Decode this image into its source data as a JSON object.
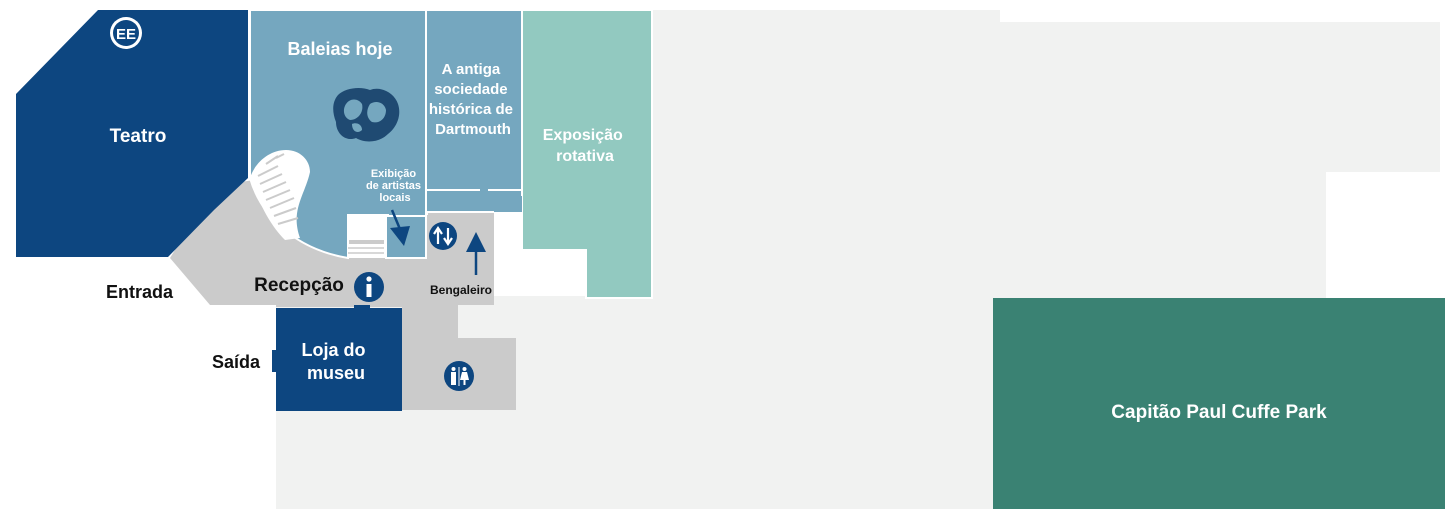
{
  "rooms": {
    "teatro": "Teatro",
    "ee_badge": "EE",
    "baleias": "Baleias hoje",
    "sociedade": [
      "A antiga",
      "sociedade",
      "histórica de",
      "Dartmouth"
    ],
    "exposicao": [
      "Exposição",
      "rotativa"
    ],
    "exibicao": [
      "Exibição",
      "de artistas",
      "locais"
    ],
    "recepcao": "Recepção",
    "bengaleiro": "Bengaleiro",
    "loja": [
      "Loja do",
      "museu"
    ],
    "park": "Capitão Paul Cuffe Park"
  },
  "outside": {
    "entrada": "Entrada",
    "saida": "Saída"
  },
  "icons": [
    "ee-icon",
    "whale-skeleton-icon",
    "info-icon",
    "elevator-icon",
    "restroom-icon",
    "arrow-down-icon",
    "arrow-up-icon"
  ],
  "colors": {
    "dark_blue": "#0d4680",
    "light_blue": "#75a7bf",
    "teal": "#92c9c0",
    "park_green": "#3a8273",
    "corridor_gray": "#cbcbcb",
    "ground": "#f1f2f1"
  }
}
